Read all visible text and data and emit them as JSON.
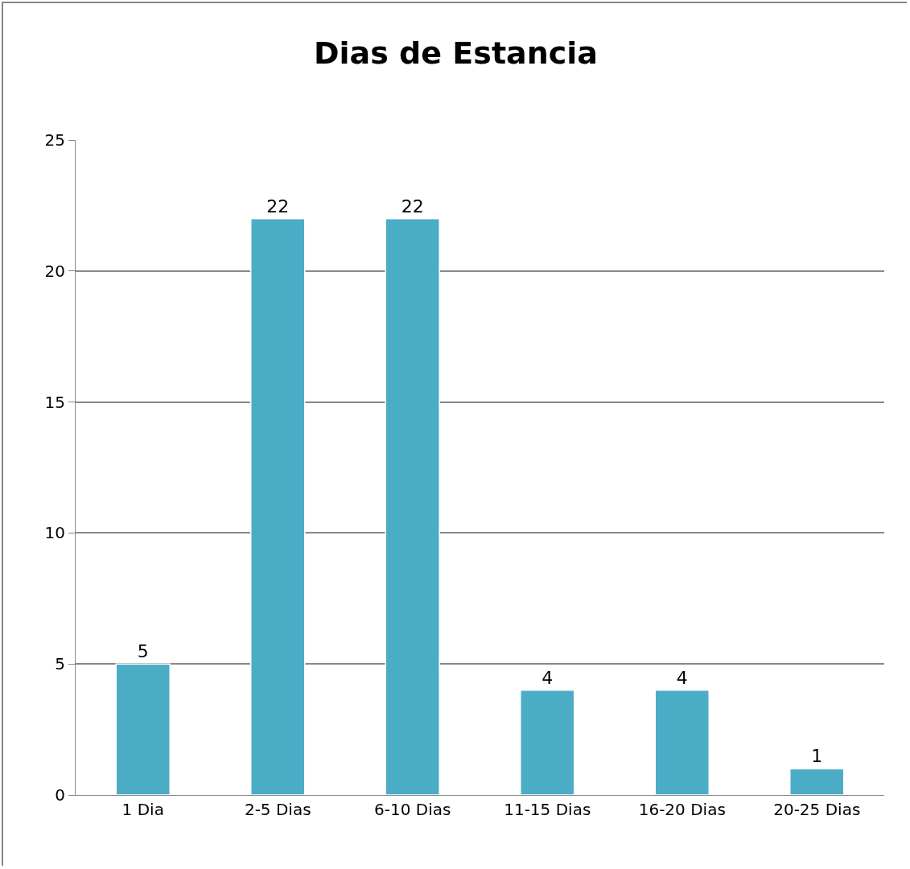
{
  "chart_data": {
    "type": "bar",
    "title": "Dias de Estancia",
    "categories": [
      "1 Dia",
      "2-5 Dias",
      "6-10 Dias",
      "11-15 Dias",
      "16-20 Dias",
      "20-25 Dias"
    ],
    "values": [
      5,
      22,
      22,
      4,
      4,
      1
    ],
    "color": "#4bacc6",
    "ylim": [
      0,
      25
    ],
    "yticks": [
      0,
      5,
      10,
      15,
      20,
      25
    ],
    "grid": "y",
    "data_labels": true,
    "legend": false
  }
}
